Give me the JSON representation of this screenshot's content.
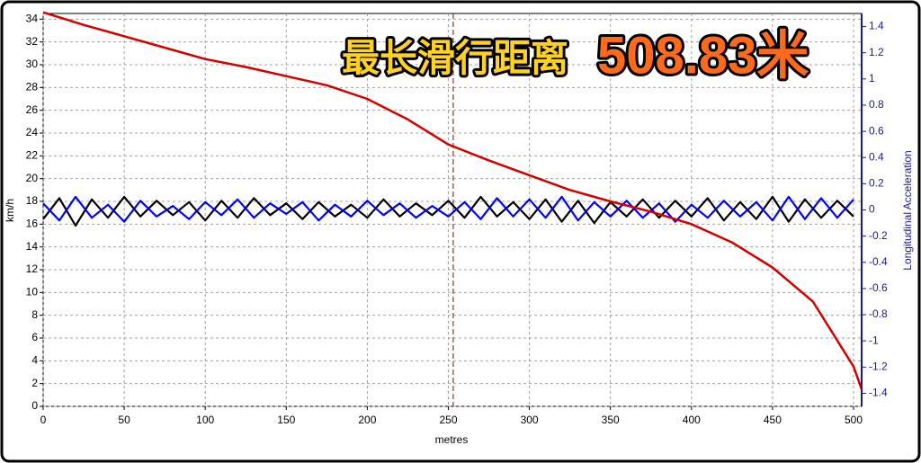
{
  "chart_data": {
    "type": "line",
    "annotation": "最长滑行距离",
    "annotation_value": "508.83米",
    "xlabel": "metres",
    "ylabel": "km/h",
    "y2label": "Longitudinal Acceleration",
    "xlim": [
      0,
      505
    ],
    "xticks": [
      0,
      50,
      100,
      150,
      200,
      250,
      300,
      350,
      400,
      450,
      500
    ],
    "ylim": [
      0,
      34.5
    ],
    "yticks": [
      0,
      2,
      4,
      6,
      8,
      10,
      12,
      14,
      16,
      18,
      20,
      22,
      24,
      26,
      28,
      30,
      32,
      34
    ],
    "y2lim": [
      -1.5,
      1.5
    ],
    "y2ticks": [
      -1.4,
      -1.2,
      -1,
      -0.8,
      -0.6,
      -0.4,
      -0.2,
      0,
      0.2,
      0.4,
      0.6,
      0.8,
      1,
      1.2,
      1.4
    ],
    "grid": true,
    "cursor": 253,
    "cursor_color": "#7a3b2e",
    "series": [
      {
        "color": "#000000",
        "axis": "y2",
        "x": [
          0,
          10,
          20,
          30,
          40,
          50,
          60,
          70,
          80,
          90,
          100,
          110,
          120,
          130,
          140,
          150,
          160,
          170,
          180,
          190,
          200,
          210,
          220,
          230,
          240,
          250,
          260,
          270,
          280,
          290,
          300,
          310,
          320,
          330,
          340,
          350,
          360,
          370,
          380,
          390,
          400,
          410,
          420,
          430,
          440,
          450,
          460,
          470,
          480,
          490,
          500
        ],
        "values": [
          -0.07,
          0.09,
          -0.12,
          0.08,
          -0.06,
          0.1,
          -0.05,
          0.07,
          -0.04,
          0.06,
          -0.08,
          0.07,
          -0.06,
          0.09,
          -0.04,
          0.05,
          -0.07,
          0.06,
          -0.05,
          0.04,
          -0.06,
          0.08,
          -0.05,
          0.05,
          -0.04,
          0.07,
          -0.06,
          0.1,
          -0.05,
          0.06,
          -0.07,
          0.08,
          -0.09,
          0.07,
          -0.1,
          0.06,
          -0.05,
          0.08,
          -0.06,
          0.07,
          -0.05,
          0.09,
          -0.08,
          0.06,
          -0.07,
          0.1,
          -0.09,
          0.08,
          -0.06,
          0.07,
          -0.05
        ]
      },
      {
        "color": "#0000ff",
        "axis": "y2",
        "x": [
          0,
          10,
          20,
          30,
          40,
          50,
          60,
          70,
          80,
          90,
          100,
          110,
          120,
          130,
          140,
          150,
          160,
          170,
          180,
          190,
          200,
          210,
          220,
          230,
          240,
          250,
          260,
          270,
          280,
          290,
          300,
          310,
          320,
          330,
          340,
          350,
          360,
          370,
          380,
          390,
          400,
          410,
          420,
          430,
          440,
          450,
          460,
          470,
          480,
          490,
          500
        ],
        "values": [
          0.05,
          -0.08,
          0.1,
          -0.06,
          0.04,
          -0.09,
          0.07,
          -0.05,
          0.03,
          -0.07,
          0.06,
          -0.04,
          0.08,
          -0.06,
          0.05,
          -0.03,
          0.06,
          -0.08,
          0.04,
          -0.05,
          0.07,
          -0.04,
          0.05,
          -0.06,
          0.03,
          -0.05,
          0.06,
          -0.07,
          0.09,
          -0.05,
          0.08,
          -0.06,
          0.1,
          -0.08,
          0.06,
          -0.05,
          0.07,
          -0.06,
          0.05,
          -0.09,
          0.04,
          -0.06,
          0.07,
          -0.05,
          0.06,
          -0.08,
          0.1,
          -0.07,
          0.09,
          -0.06,
          0.08
        ]
      },
      {
        "color": "#d40000",
        "x": [
          0,
          25,
          50,
          75,
          100,
          125,
          150,
          175,
          200,
          225,
          250,
          275,
          300,
          325,
          350,
          375,
          400,
          425,
          450,
          475,
          500,
          505
        ],
        "values": [
          34.6,
          33.5,
          32.5,
          31.5,
          30.5,
          29.8,
          29.0,
          28.2,
          27.0,
          25.2,
          23.0,
          21.6,
          20.3,
          19.0,
          18.0,
          17.1,
          16.0,
          14.4,
          12.2,
          9.2,
          3.5,
          1.5
        ]
      }
    ]
  }
}
